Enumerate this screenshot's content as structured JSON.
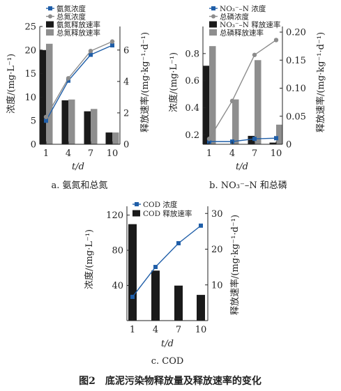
{
  "figure_caption": "图2　底泥污染物释放量及释放速率的变化",
  "colors": {
    "conc_blue": "#1f5ea8",
    "conc_gray": "#8c8c8c",
    "bar_black": "#1a1a1a",
    "bar_gray": "#8e8e8e",
    "caption": "#1f5ea8"
  },
  "chart_data": [
    {
      "type": "bar+line",
      "subtitle": "a. 氨氮和总氮",
      "xlabel": "t/d",
      "ylabel_left": "浓度/(mg·L⁻¹)",
      "ylabel_right": "释放速率/(mg·kg⁻¹·d⁻¹)",
      "categories": [
        "1",
        "4",
        "7",
        "10"
      ],
      "ylim_left": [
        0,
        25
      ],
      "yticks_left": [
        "0",
        "5",
        "10",
        "15",
        "20",
        "25"
      ],
      "ylim_right": [
        0,
        7.5
      ],
      "yticks_right": [
        "0",
        "2",
        "4",
        "6"
      ],
      "legend": [
        "氨氮浓度",
        "总氮浓度",
        "氨氮释放速率",
        "总氮释放速率"
      ],
      "line_series": [
        {
          "name": "氨氮浓度",
          "values": [
            5.0,
            13.5,
            19.0,
            21.0
          ],
          "marker": "square"
        },
        {
          "name": "总氮浓度",
          "values": [
            5.8,
            14.0,
            19.8,
            21.8
          ],
          "marker": "circle"
        }
      ],
      "bar_series": [
        {
          "name": "氨氮释放速率",
          "values": [
            6.0,
            2.8,
            2.1,
            0.75
          ]
        },
        {
          "name": "总氮释放速率",
          "values": [
            6.4,
            2.85,
            2.25,
            0.75
          ]
        }
      ]
    },
    {
      "type": "bar+line",
      "subtitle": "b. NO₃⁻–N 和总磷",
      "xlabel": "t/d",
      "ylabel_left": "浓度/(mg·L⁻¹)",
      "ylabel_right": "释放速率/(mg·kg⁻¹·d⁻¹)",
      "categories": [
        "1",
        "4",
        "7",
        "10"
      ],
      "ylim_left": [
        0.13,
        1.0
      ],
      "yticks_left": [
        "0.2",
        "0.4",
        "0.6",
        "0.8"
      ],
      "ylim_right": [
        0,
        0.21
      ],
      "yticks_right": [
        "0",
        "0.05",
        "0.10",
        "0.15",
        "0.20"
      ],
      "legend": [
        "NO₃⁻–N 浓度",
        "总磷浓度",
        "NO₃⁻–N 释放速率",
        "总磷释放速率"
      ],
      "line_series": [
        {
          "name": "NO₃⁻–N 浓度",
          "values": [
            0.15,
            0.15,
            0.17,
            0.175
          ],
          "marker": "square"
        },
        {
          "name": "总磷浓度",
          "values": [
            0.17,
            0.45,
            0.79,
            0.9
          ],
          "marker": "circle"
        }
      ],
      "bar_series": [
        {
          "name": "NO₃⁻–N 释放速率",
          "values": [
            0.14,
            0.0,
            0.015,
            0.003
          ]
        },
        {
          "name": "总磷释放速率",
          "values": [
            0.175,
            0.08,
            0.15,
            0.035
          ]
        }
      ]
    },
    {
      "type": "bar+line",
      "subtitle": "c. COD",
      "xlabel": "t/d",
      "ylabel_left": "浓度/(mg·L⁻¹)",
      "ylabel_right": "释放速率/(mg·kg⁻¹·d⁻¹)",
      "categories": [
        "1",
        "4",
        "7",
        "10"
      ],
      "ylim_left": [
        0,
        130
      ],
      "yticks_left": [
        "40",
        "80",
        "120"
      ],
      "ylim_right": [
        0,
        32
      ],
      "yticks_right": [
        "10",
        "20",
        "30"
      ],
      "legend": [
        "COD 浓度",
        "COD 释放速率"
      ],
      "line_series": [
        {
          "name": "COD 浓度",
          "values": [
            27,
            61,
            88,
            108
          ],
          "marker": "square"
        }
      ],
      "bar_series": [
        {
          "name": "COD 释放速率",
          "values": [
            27,
            14,
            9.8,
            7.2
          ]
        }
      ]
    }
  ]
}
